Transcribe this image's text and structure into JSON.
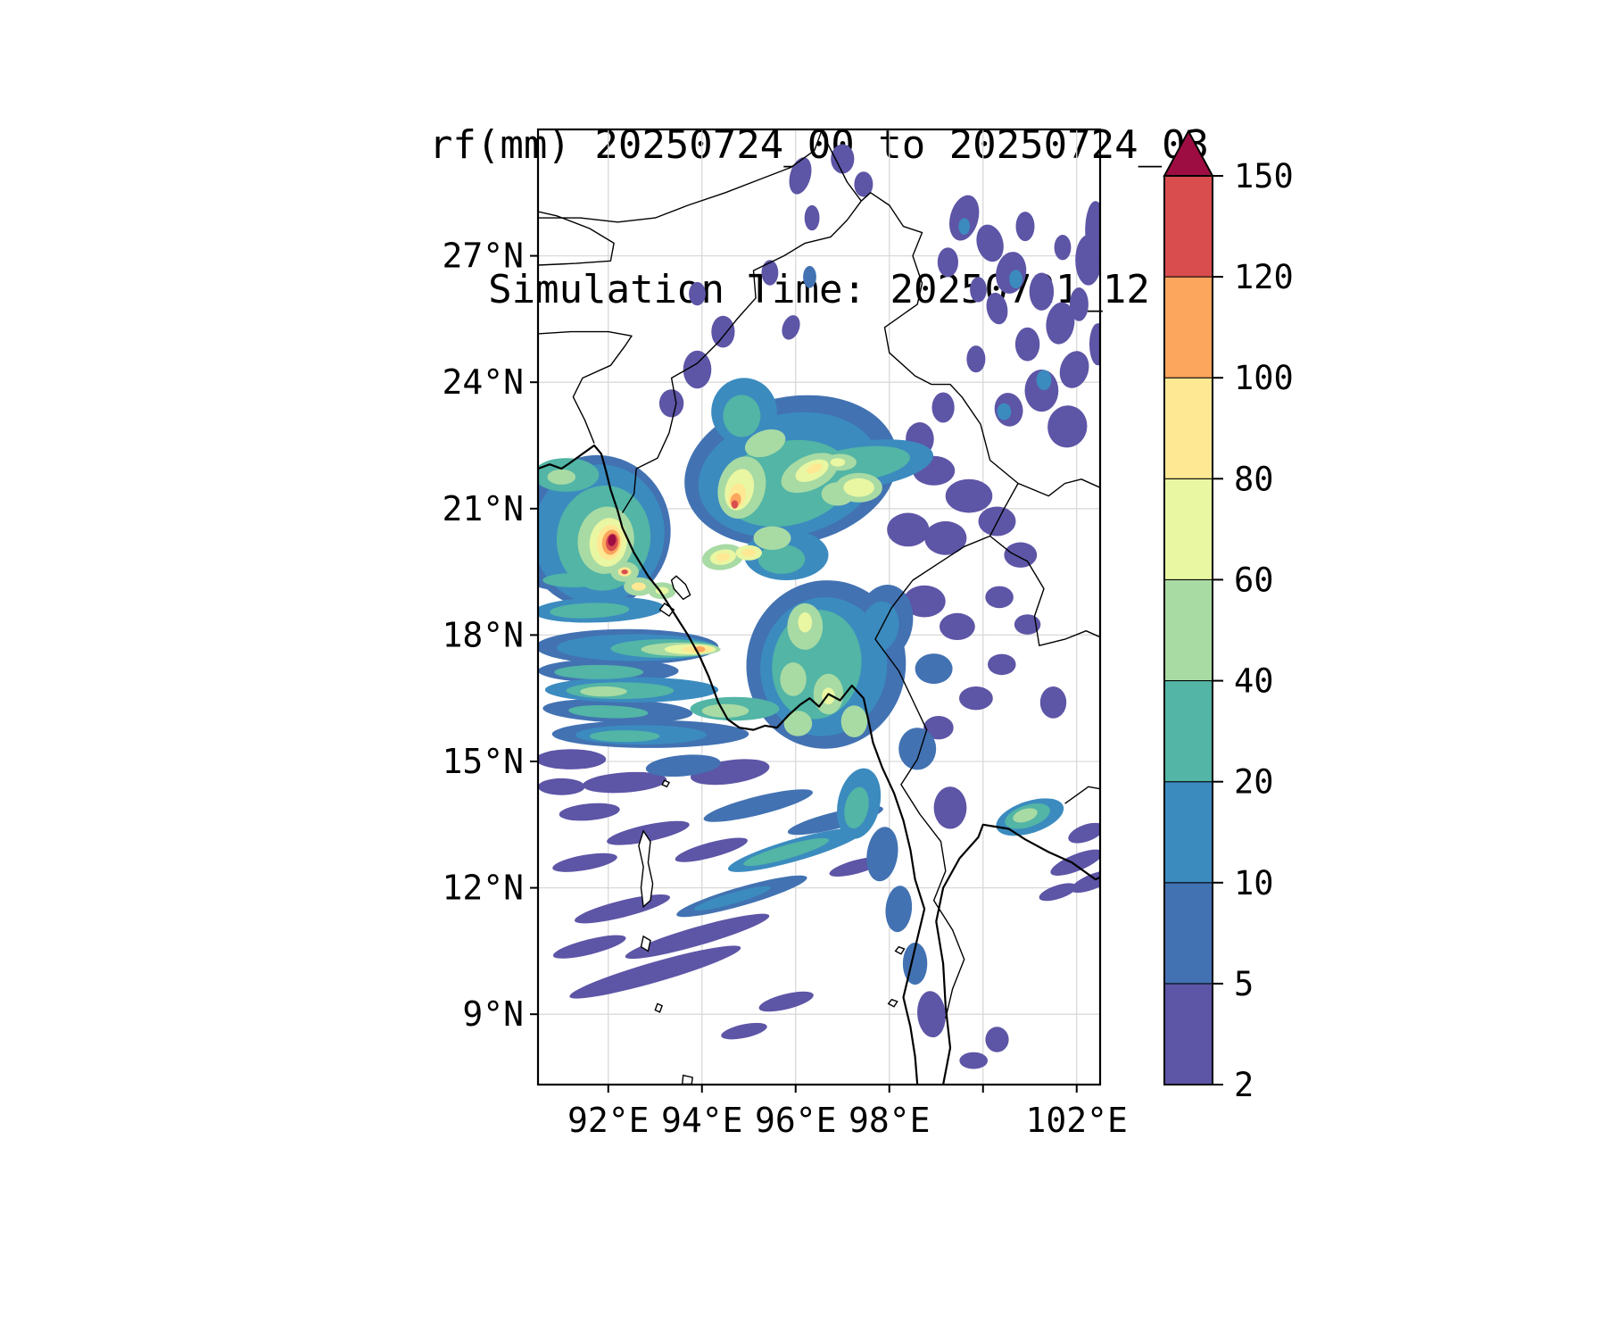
{
  "chart_data": {
    "type": "heatmap",
    "title": "rf(mm) 20250724_00 to 20250724_03",
    "subtitle": "Simulation Time: 20250721_12",
    "variable": "rf",
    "units": "mm",
    "lon_range": [
      90.5,
      102.5
    ],
    "lat_range": [
      7.33,
      30.0
    ],
    "grid_lons": [
      92,
      94,
      96,
      98,
      100,
      102
    ],
    "grid_lats": [
      9,
      12,
      15,
      18,
      21,
      24,
      27
    ],
    "x_ticks": [
      {
        "v": 92,
        "label": "92°E"
      },
      {
        "v": 94,
        "label": "94°E"
      },
      {
        "v": 96,
        "label": "96°E"
      },
      {
        "v": 98,
        "label": "98°E"
      },
      {
        "v": 102,
        "label": "102°E"
      }
    ],
    "y_ticks": [
      {
        "v": 9,
        "label": "9°N"
      },
      {
        "v": 12,
        "label": "12°N"
      },
      {
        "v": 15,
        "label": "15°N"
      },
      {
        "v": 18,
        "label": "18°N"
      },
      {
        "v": 21,
        "label": "21°N"
      },
      {
        "v": 24,
        "label": "24°N"
      },
      {
        "v": 27,
        "label": "27°N"
      }
    ],
    "colorbar": {
      "levels": [
        2,
        5,
        10,
        20,
        40,
        60,
        80,
        100,
        120,
        150
      ],
      "colors": [
        "#5d55a6",
        "#4272b2",
        "#3b8bbf",
        "#52b5a5",
        "#a8daa4",
        "#e9f6a2",
        "#fee894",
        "#fba55d",
        "#d94d4f"
      ],
      "over_color": "#9e0d42",
      "extend": "max",
      "orientation": "vertical"
    },
    "precip_features": [
      [
        96.1,
        28.9,
        0.22,
        0.45,
        15,
        0
      ],
      [
        97.0,
        29.3,
        0.25,
        0.35,
        0,
        0
      ],
      [
        97.45,
        28.7,
        0.2,
        0.3,
        0,
        0
      ],
      [
        96.35,
        27.9,
        0.16,
        0.3,
        0,
        0
      ],
      [
        95.45,
        26.6,
        0.18,
        0.3,
        0,
        0
      ],
      [
        95.9,
        25.3,
        0.18,
        0.3,
        20,
        0
      ],
      [
        93.9,
        26.1,
        0.18,
        0.28,
        0,
        0
      ],
      [
        94.45,
        25.2,
        0.25,
        0.38,
        0,
        0
      ],
      [
        93.9,
        24.3,
        0.3,
        0.45,
        0,
        0
      ],
      [
        93.35,
        23.5,
        0.26,
        0.33,
        0,
        0
      ],
      [
        99.6,
        27.9,
        0.3,
        0.55,
        15,
        0
      ],
      [
        100.15,
        27.3,
        0.28,
        0.45,
        -15,
        0
      ],
      [
        99.25,
        26.85,
        0.22,
        0.35,
        0,
        0
      ],
      [
        100.6,
        26.6,
        0.32,
        0.5,
        10,
        0
      ],
      [
        101.25,
        26.15,
        0.26,
        0.45,
        0,
        0
      ],
      [
        100.3,
        25.75,
        0.22,
        0.38,
        -12,
        0
      ],
      [
        101.65,
        25.4,
        0.3,
        0.5,
        8,
        0
      ],
      [
        100.95,
        24.9,
        0.26,
        0.4,
        0,
        0
      ],
      [
        101.95,
        24.3,
        0.3,
        0.45,
        18,
        0
      ],
      [
        101.25,
        23.8,
        0.36,
        0.5,
        0,
        0
      ],
      [
        100.55,
        23.35,
        0.3,
        0.4,
        -10,
        0
      ],
      [
        101.8,
        22.95,
        0.42,
        0.5,
        12,
        0
      ],
      [
        102.25,
        26.9,
        0.28,
        0.6,
        0,
        0
      ],
      [
        102.05,
        25.85,
        0.2,
        0.4,
        0,
        0
      ],
      [
        99.85,
        24.55,
        0.2,
        0.32,
        0,
        0
      ],
      [
        99.15,
        23.4,
        0.24,
        0.36,
        0,
        0
      ],
      [
        98.65,
        22.65,
        0.3,
        0.4,
        0,
        0
      ],
      [
        102.4,
        27.6,
        0.22,
        0.7,
        0,
        0
      ],
      [
        102.45,
        24.9,
        0.18,
        0.5,
        0,
        0
      ],
      [
        99.9,
        26.2,
        0.18,
        0.3,
        0,
        0
      ],
      [
        100.9,
        27.7,
        0.2,
        0.35,
        0,
        0
      ],
      [
        101.7,
        27.2,
        0.18,
        0.3,
        0,
        0
      ],
      [
        98.95,
        21.9,
        0.45,
        0.35,
        0,
        0
      ],
      [
        99.7,
        21.3,
        0.5,
        0.4,
        0,
        0
      ],
      [
        100.3,
        20.7,
        0.4,
        0.35,
        0,
        0
      ],
      [
        99.2,
        20.3,
        0.45,
        0.4,
        0,
        0
      ],
      [
        100.8,
        19.9,
        0.35,
        0.3,
        0,
        0
      ],
      [
        98.4,
        20.5,
        0.45,
        0.4,
        0,
        0
      ],
      [
        98.75,
        18.8,
        0.45,
        0.38,
        0,
        0
      ],
      [
        99.45,
        18.2,
        0.38,
        0.32,
        0,
        0
      ],
      [
        99.85,
        16.5,
        0.36,
        0.28,
        0,
        0
      ],
      [
        99.05,
        15.8,
        0.32,
        0.28,
        0,
        0
      ],
      [
        100.35,
        18.9,
        0.3,
        0.26,
        0,
        0
      ],
      [
        100.95,
        18.25,
        0.28,
        0.24,
        0,
        0
      ],
      [
        100.4,
        17.3,
        0.3,
        0.25,
        0,
        0
      ],
      [
        101.5,
        16.4,
        0.28,
        0.38,
        0,
        0
      ],
      [
        99.3,
        13.9,
        0.35,
        0.5,
        0,
        0
      ],
      [
        98.9,
        9.0,
        0.3,
        0.55,
        -5,
        0
      ],
      [
        99.8,
        7.9,
        0.3,
        0.2,
        0,
        0
      ],
      [
        100.3,
        8.4,
        0.25,
        0.3,
        0,
        0
      ],
      [
        102.0,
        12.6,
        0.6,
        0.2,
        -22,
        0
      ],
      [
        102.35,
        12.15,
        0.5,
        0.18,
        -22,
        0
      ],
      [
        101.6,
        11.9,
        0.42,
        0.16,
        -18,
        0
      ],
      [
        102.2,
        13.3,
        0.4,
        0.2,
        -20,
        0
      ],
      [
        91.2,
        15.05,
        0.75,
        0.24,
        0,
        0
      ],
      [
        91.0,
        14.4,
        0.5,
        0.2,
        0,
        0
      ],
      [
        92.35,
        14.5,
        0.9,
        0.24,
        -4,
        0
      ],
      [
        91.6,
        13.8,
        0.65,
        0.2,
        -5,
        0
      ],
      [
        94.6,
        14.75,
        0.85,
        0.28,
        -8,
        0
      ],
      [
        93.0,
        10.0,
        1.9,
        0.24,
        -16,
        0
      ],
      [
        93.9,
        10.85,
        1.6,
        0.22,
        -16,
        0
      ],
      [
        92.3,
        11.5,
        1.05,
        0.2,
        -14,
        0
      ],
      [
        91.6,
        10.6,
        0.8,
        0.18,
        -14,
        0
      ],
      [
        92.85,
        13.3,
        0.9,
        0.2,
        -12,
        0
      ],
      [
        91.5,
        12.6,
        0.7,
        0.18,
        -10,
        0
      ],
      [
        94.2,
        12.9,
        0.8,
        0.18,
        -15,
        0
      ],
      [
        97.3,
        12.5,
        0.6,
        0.16,
        -15,
        0
      ],
      [
        94.9,
        8.6,
        0.5,
        0.16,
        -12,
        0
      ],
      [
        95.8,
        9.3,
        0.6,
        0.18,
        -14,
        0
      ],
      [
        90.8,
        19.9,
        0.5,
        0.25,
        0,
        0
      ],
      [
        96.3,
        26.5,
        0.14,
        0.26,
        0,
        1
      ],
      [
        95.9,
        21.9,
        2.3,
        1.75,
        -12,
        1
      ],
      [
        91.75,
        20.45,
        1.58,
        1.82,
        8,
        1
      ],
      [
        92.4,
        17.72,
        1.95,
        0.42,
        0,
        1
      ],
      [
        91.4,
        19.3,
        1.1,
        0.28,
        0,
        1
      ],
      [
        92.0,
        17.15,
        1.5,
        0.28,
        0,
        1
      ],
      [
        92.2,
        16.2,
        1.6,
        0.28,
        2,
        1
      ],
      [
        92.9,
        15.65,
        2.1,
        0.33,
        0,
        1
      ],
      [
        93.6,
        14.9,
        0.8,
        0.25,
        -5,
        1
      ],
      [
        96.65,
        17.3,
        1.7,
        2.0,
        8,
        1
      ],
      [
        97.9,
        18.3,
        0.6,
        0.9,
        10,
        1
      ],
      [
        97.85,
        12.8,
        0.33,
        0.65,
        8,
        1
      ],
      [
        98.2,
        11.5,
        0.28,
        0.55,
        5,
        1
      ],
      [
        98.55,
        10.2,
        0.26,
        0.5,
        0,
        1
      ],
      [
        98.6,
        15.3,
        0.4,
        0.5,
        0,
        1
      ],
      [
        94.85,
        11.8,
        1.45,
        0.22,
        -16,
        1
      ],
      [
        95.2,
        13.95,
        1.2,
        0.22,
        -14,
        1
      ],
      [
        96.85,
        13.6,
        1.05,
        0.2,
        -14,
        1
      ],
      [
        98.95,
        17.2,
        0.4,
        0.36,
        0,
        1
      ],
      [
        100.7,
        26.45,
        0.14,
        0.22,
        0,
        2
      ],
      [
        101.3,
        24.05,
        0.16,
        0.24,
        0,
        2
      ],
      [
        100.45,
        23.3,
        0.15,
        0.2,
        0,
        2
      ],
      [
        99.6,
        27.7,
        0.12,
        0.2,
        0,
        2
      ],
      [
        95.85,
        21.8,
        1.95,
        1.45,
        -12,
        2
      ],
      [
        91.8,
        20.4,
        1.4,
        1.65,
        8,
        2
      ],
      [
        92.6,
        17.7,
        1.7,
        0.32,
        0,
        2
      ],
      [
        91.8,
        18.6,
        1.4,
        0.3,
        -2,
        2
      ],
      [
        92.5,
        16.7,
        1.85,
        0.3,
        0,
        2
      ],
      [
        92.7,
        15.63,
        1.4,
        0.23,
        0,
        2
      ],
      [
        96.6,
        17.25,
        1.35,
        1.65,
        8,
        2
      ],
      [
        97.8,
        18.2,
        0.4,
        0.6,
        10,
        2
      ],
      [
        97.45,
        22.05,
        1.5,
        0.55,
        -8,
        2
      ],
      [
        94.9,
        23.3,
        0.7,
        0.8,
        0,
        2
      ],
      [
        95.8,
        19.9,
        0.9,
        0.6,
        0,
        2
      ],
      [
        97.35,
        14.0,
        0.45,
        0.85,
        12,
        2
      ],
      [
        96.0,
        12.9,
        1.5,
        0.26,
        -16,
        2
      ],
      [
        94.65,
        11.75,
        0.85,
        0.13,
        -16,
        2
      ],
      [
        101.0,
        13.68,
        0.75,
        0.38,
        -18,
        2
      ],
      [
        95.8,
        21.6,
        1.4,
        1.0,
        -12,
        3
      ],
      [
        91.9,
        20.3,
        1.0,
        1.25,
        8,
        3
      ],
      [
        91.1,
        21.8,
        0.7,
        0.4,
        0,
        3
      ],
      [
        93.2,
        17.68,
        1.15,
        0.22,
        0,
        3
      ],
      [
        91.25,
        19.3,
        0.65,
        0.17,
        0,
        3
      ],
      [
        91.6,
        18.58,
        0.85,
        0.18,
        -2,
        3
      ],
      [
        91.8,
        17.12,
        0.95,
        0.17,
        0,
        3
      ],
      [
        92.25,
        16.68,
        1.15,
        0.2,
        0,
        3
      ],
      [
        92.0,
        16.18,
        0.85,
        0.15,
        2,
        3
      ],
      [
        92.35,
        15.6,
        0.75,
        0.14,
        0,
        3
      ],
      [
        96.45,
        17.3,
        0.95,
        1.3,
        8,
        3
      ],
      [
        94.7,
        16.25,
        0.95,
        0.28,
        0,
        3
      ],
      [
        97.3,
        22.05,
        1.15,
        0.4,
        -8,
        3
      ],
      [
        94.85,
        23.2,
        0.4,
        0.5,
        0,
        3
      ],
      [
        95.7,
        19.8,
        0.5,
        0.35,
        0,
        3
      ],
      [
        97.3,
        13.9,
        0.25,
        0.5,
        12,
        3
      ],
      [
        95.8,
        12.85,
        0.95,
        0.16,
        -16,
        3
      ],
      [
        100.95,
        13.7,
        0.5,
        0.26,
        -18,
        3
      ],
      [
        94.85,
        21.5,
        0.5,
        0.75,
        15,
        4
      ],
      [
        96.3,
        21.85,
        0.65,
        0.4,
        -25,
        4
      ],
      [
        95.35,
        22.55,
        0.45,
        0.3,
        -20,
        4
      ],
      [
        96.9,
        21.35,
        0.35,
        0.28,
        0,
        4
      ],
      [
        94.45,
        19.85,
        0.45,
        0.3,
        -10,
        4
      ],
      [
        97.35,
        21.5,
        0.5,
        0.35,
        0,
        4
      ],
      [
        96.95,
        22.1,
        0.35,
        0.2,
        0,
        4
      ],
      [
        91.95,
        20.25,
        0.6,
        0.8,
        8,
        4
      ],
      [
        92.35,
        19.5,
        0.3,
        0.24,
        0,
        4
      ],
      [
        92.65,
        19.15,
        0.32,
        0.22,
        0,
        4
      ],
      [
        93.15,
        19.05,
        0.3,
        0.2,
        0,
        4
      ],
      [
        91.0,
        21.75,
        0.3,
        0.18,
        0,
        4
      ],
      [
        93.55,
        17.66,
        0.85,
        0.16,
        0,
        4
      ],
      [
        91.9,
        16.66,
        0.5,
        0.12,
        0,
        4
      ],
      [
        96.2,
        18.2,
        0.38,
        0.55,
        0,
        4
      ],
      [
        96.7,
        16.6,
        0.32,
        0.48,
        0,
        4
      ],
      [
        95.95,
        16.95,
        0.28,
        0.4,
        0,
        4
      ],
      [
        97.25,
        15.95,
        0.28,
        0.38,
        0,
        4
      ],
      [
        96.05,
        15.9,
        0.3,
        0.3,
        0,
        4
      ],
      [
        94.5,
        16.2,
        0.5,
        0.16,
        0,
        4
      ],
      [
        100.9,
        13.72,
        0.27,
        0.15,
        -18,
        4
      ],
      [
        95.5,
        20.3,
        0.4,
        0.28,
        0,
        4
      ],
      [
        94.8,
        21.45,
        0.3,
        0.5,
        15,
        5
      ],
      [
        96.35,
        21.9,
        0.38,
        0.22,
        -25,
        5
      ],
      [
        97.35,
        21.5,
        0.33,
        0.22,
        0,
        5
      ],
      [
        95.0,
        19.95,
        0.28,
        0.18,
        0,
        5
      ],
      [
        94.45,
        19.85,
        0.28,
        0.18,
        -10,
        5
      ],
      [
        92.0,
        20.2,
        0.4,
        0.58,
        8,
        5
      ],
      [
        93.75,
        17.66,
        0.55,
        0.12,
        0,
        5
      ],
      [
        96.2,
        18.3,
        0.15,
        0.24,
        0,
        5
      ],
      [
        96.7,
        16.55,
        0.14,
        0.2,
        0,
        5
      ],
      [
        96.9,
        22.1,
        0.16,
        0.1,
        0,
        5
      ],
      [
        93.15,
        19.05,
        0.14,
        0.09,
        0,
        5
      ],
      [
        94.75,
        21.3,
        0.18,
        0.3,
        15,
        6
      ],
      [
        96.4,
        21.95,
        0.18,
        0.1,
        -25,
        6
      ],
      [
        95.0,
        19.95,
        0.15,
        0.1,
        0,
        6
      ],
      [
        94.45,
        19.85,
        0.15,
        0.1,
        -10,
        6
      ],
      [
        92.03,
        20.2,
        0.27,
        0.42,
        8,
        6
      ],
      [
        92.35,
        19.5,
        0.14,
        0.11,
        0,
        6
      ],
      [
        92.65,
        19.15,
        0.15,
        0.1,
        0,
        6
      ],
      [
        93.9,
        17.66,
        0.32,
        0.09,
        0,
        6
      ],
      [
        94.72,
        21.2,
        0.11,
        0.17,
        15,
        7
      ],
      [
        92.06,
        20.2,
        0.19,
        0.3,
        8,
        7
      ],
      [
        93.95,
        17.66,
        0.12,
        0.07,
        0,
        7
      ],
      [
        94.7,
        21.1,
        0.07,
        0.1,
        0,
        8
      ],
      [
        92.08,
        20.2,
        0.13,
        0.21,
        8,
        8
      ],
      [
        92.35,
        19.5,
        0.07,
        0.055,
        0,
        8
      ],
      [
        92.08,
        20.25,
        0.085,
        0.14,
        8,
        9
      ]
    ]
  }
}
